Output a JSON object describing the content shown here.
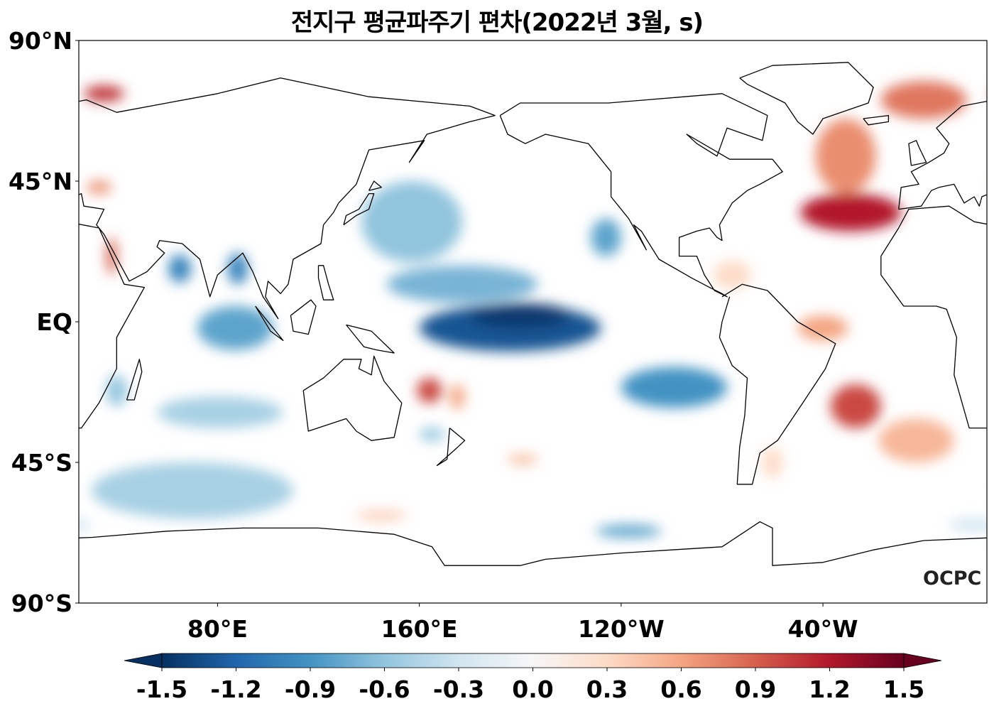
{
  "title": "전지구 평균파주기 편차(2022년 3월, s)",
  "logo": "OCPC",
  "chart_data": {
    "type": "heatmap",
    "projection": "equirectangular",
    "central_longitude": 205,
    "variable": "mean wave period anomaly",
    "unit": "s",
    "lat_ticks": [
      {
        "value": 90,
        "label": "90°N"
      },
      {
        "value": 45,
        "label": "45°N"
      },
      {
        "value": 0,
        "label": "EQ"
      },
      {
        "value": -45,
        "label": "45°S"
      },
      {
        "value": -90,
        "label": "90°S"
      }
    ],
    "lon_ticks": [
      {
        "value": 80,
        "label": "80°E"
      },
      {
        "value": 160,
        "label": "160°E"
      },
      {
        "value": 240,
        "label": "120°W"
      },
      {
        "value": 320,
        "label": "40°W"
      }
    ],
    "colorbar": {
      "range": [
        -1.5,
        1.5
      ],
      "extend": "both",
      "ticks": [
        "-1.5",
        "-1.2",
        "-0.9",
        "-0.6",
        "-0.3",
        "0.0",
        "0.3",
        "0.6",
        "0.9",
        "1.2",
        "1.5"
      ],
      "colormap": [
        "#053061",
        "#2166ac",
        "#4393c3",
        "#92c5de",
        "#d1e5f0",
        "#f7f7f7",
        "#fddbc7",
        "#f4a582",
        "#d6604d",
        "#b2182b",
        "#67001f"
      ]
    },
    "anomaly_regions": [
      {
        "lon": 196,
        "lat": -2,
        "dlon": 72,
        "dlat": 15,
        "value": -1.3
      },
      {
        "lon": 200,
        "lat": 2,
        "dlon": 40,
        "dlat": 8,
        "value": -1.45
      },
      {
        "lon": 177,
        "lat": 12,
        "dlon": 60,
        "dlat": 12,
        "value": -0.7
      },
      {
        "lon": 157,
        "lat": 32,
        "dlon": 40,
        "dlat": 26,
        "value": -0.6
      },
      {
        "lon": 234,
        "lat": 27,
        "dlon": 12,
        "dlat": 12,
        "value": -0.8
      },
      {
        "lon": 261,
        "lat": -21,
        "dlon": 42,
        "dlat": 13,
        "value": -0.9
      },
      {
        "lon": 65,
        "lat": 17,
        "dlon": 9,
        "dlat": 9,
        "value": -1.0
      },
      {
        "lon": 88,
        "lat": 17,
        "dlon": 8,
        "dlat": 10,
        "value": -1.0
      },
      {
        "lon": 87,
        "lat": -2,
        "dlon": 30,
        "dlat": 14,
        "value": -0.8
      },
      {
        "lon": 81,
        "lat": -29,
        "dlon": 50,
        "dlat": 10,
        "value": -0.5
      },
      {
        "lon": 70,
        "lat": -54,
        "dlon": 80,
        "dlat": 18,
        "value": -0.5
      },
      {
        "lon": 40,
        "lat": -22,
        "dlon": 8,
        "dlat": 10,
        "value": -0.6
      },
      {
        "lon": 165,
        "lat": -36,
        "dlon": 10,
        "dlat": 4,
        "value": -0.6
      },
      {
        "lon": 243,
        "lat": -67,
        "dlon": 26,
        "dlat": 4,
        "value": -0.8
      },
      {
        "lon": 380,
        "lat": -65,
        "dlon": 20,
        "dlat": 4,
        "value": -0.3
      },
      {
        "lon": 331,
        "lat": 35,
        "dlon": 40,
        "dlat": 12,
        "value": 1.2
      },
      {
        "lon": 329,
        "lat": 53,
        "dlon": 24,
        "dlat": 24,
        "value": 0.7
      },
      {
        "lon": 360,
        "lat": 71,
        "dlon": 34,
        "dlat": 12,
        "value": 0.8
      },
      {
        "lon": 35,
        "lat": 73,
        "dlon": 16,
        "dlat": 5,
        "value": 1.1
      },
      {
        "lon": 333,
        "lat": -27,
        "dlon": 20,
        "dlat": 14,
        "value": 1.0
      },
      {
        "lon": 357,
        "lat": -38,
        "dlon": 30,
        "dlat": 14,
        "value": 0.5
      },
      {
        "lon": 320,
        "lat": -2,
        "dlon": 20,
        "dlat": 8,
        "value": 0.6
      },
      {
        "lon": 164,
        "lat": -22,
        "dlon": 10,
        "dlat": 8,
        "value": 1.0
      },
      {
        "lon": 175,
        "lat": -24,
        "dlon": 6,
        "dlat": 8,
        "value": 0.6
      },
      {
        "lon": 284,
        "lat": 15,
        "dlon": 15,
        "dlat": 9,
        "value": 0.3
      },
      {
        "lon": 201,
        "lat": -44,
        "dlon": 12,
        "dlat": 3,
        "value": 0.5
      },
      {
        "lon": 145,
        "lat": -62,
        "dlon": 20,
        "dlat": 3,
        "value": 0.4
      },
      {
        "lon": 300,
        "lat": -45,
        "dlon": 8,
        "dlat": 10,
        "value": 0.3
      },
      {
        "lon": 33,
        "lat": 43,
        "dlon": 10,
        "dlat": 4,
        "value": 0.7
      },
      {
        "lon": 38,
        "lat": 21,
        "dlon": 4,
        "dlat": 12,
        "value": 0.9
      }
    ]
  }
}
